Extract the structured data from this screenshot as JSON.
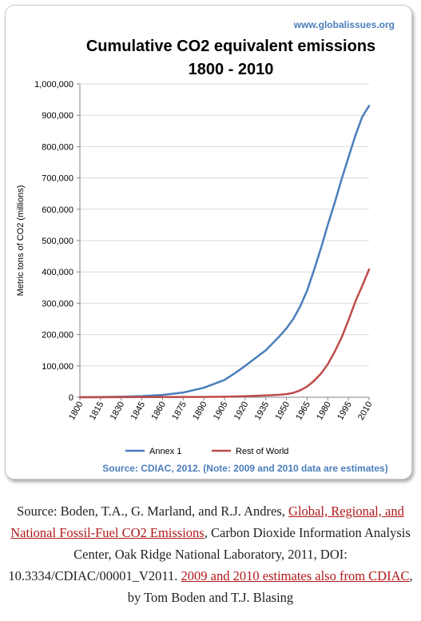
{
  "site": "www.globalissues.org",
  "chart_data": {
    "type": "line",
    "title_line1": "Cumulative CO2 equivalent emissions",
    "title_line2": "1800 - 2010",
    "xlabel": "",
    "ylabel": "Metric tons of CO2 (millions)",
    "ylim": [
      0,
      1000000
    ],
    "yticks": [
      "0",
      "100,000",
      "200,000",
      "300,000",
      "400,000",
      "500,000",
      "600,000",
      "700,000",
      "800,000",
      "900,000",
      "1,000,000"
    ],
    "xlim": [
      1800,
      2010
    ],
    "xticks": [
      "1800",
      "1815",
      "1830",
      "1845",
      "1860",
      "1875",
      "1890",
      "1905",
      "1920",
      "1935",
      "1950",
      "1965",
      "1980",
      "1995",
      "2010"
    ],
    "grid": "horizontal",
    "legend": "bottom",
    "series": [
      {
        "name": "Annex 1",
        "color": "#4a7ebb",
        "x": [
          1800,
          1815,
          1830,
          1845,
          1860,
          1875,
          1890,
          1905,
          1912,
          1920,
          1935,
          1945,
          1950,
          1955,
          1960,
          1965,
          1970,
          1975,
          1980,
          1985,
          1990,
          1995,
          2000,
          2005,
          2010
        ],
        "y": [
          0,
          500,
          1500,
          3500,
          7500,
          15000,
          30000,
          55000,
          75000,
          100000,
          150000,
          195000,
          220000,
          250000,
          290000,
          340000,
          405000,
          475000,
          550000,
          620000,
          695000,
          765000,
          835000,
          895000,
          930000
        ]
      },
      {
        "name": "Rest of World",
        "color": "#be4b48",
        "x": [
          1800,
          1830,
          1860,
          1890,
          1905,
          1920,
          1935,
          1945,
          1950,
          1955,
          1960,
          1965,
          1970,
          1975,
          1980,
          1985,
          1990,
          1995,
          2000,
          2005,
          2010
        ],
        "y": [
          0,
          200,
          500,
          1000,
          1500,
          3000,
          5500,
          8000,
          10000,
          14000,
          22000,
          34000,
          52000,
          75000,
          105000,
          145000,
          190000,
          245000,
          305000,
          355000,
          408000
        ]
      }
    ],
    "source_note": "Source: CDIAC, 2012. (Note: 2009 and 2010 data are estimates)"
  },
  "caption": {
    "prefix": "Source: Boden, T.A., G. Marland, and R.J. Andres, ",
    "link1": "Global, Regional, and National Fossil-Fuel CO2 Emissions",
    "middle": ", Carbon Dioxide Information Analysis Center, Oak Ridge National Laboratory, 2011, DOI: 10.3334/CDIAC/00001_V2011. ",
    "link2": "2009 and 2010 estimates also from CDIAC",
    "suffix": ", by Tom Boden and T.J. Blasing"
  }
}
